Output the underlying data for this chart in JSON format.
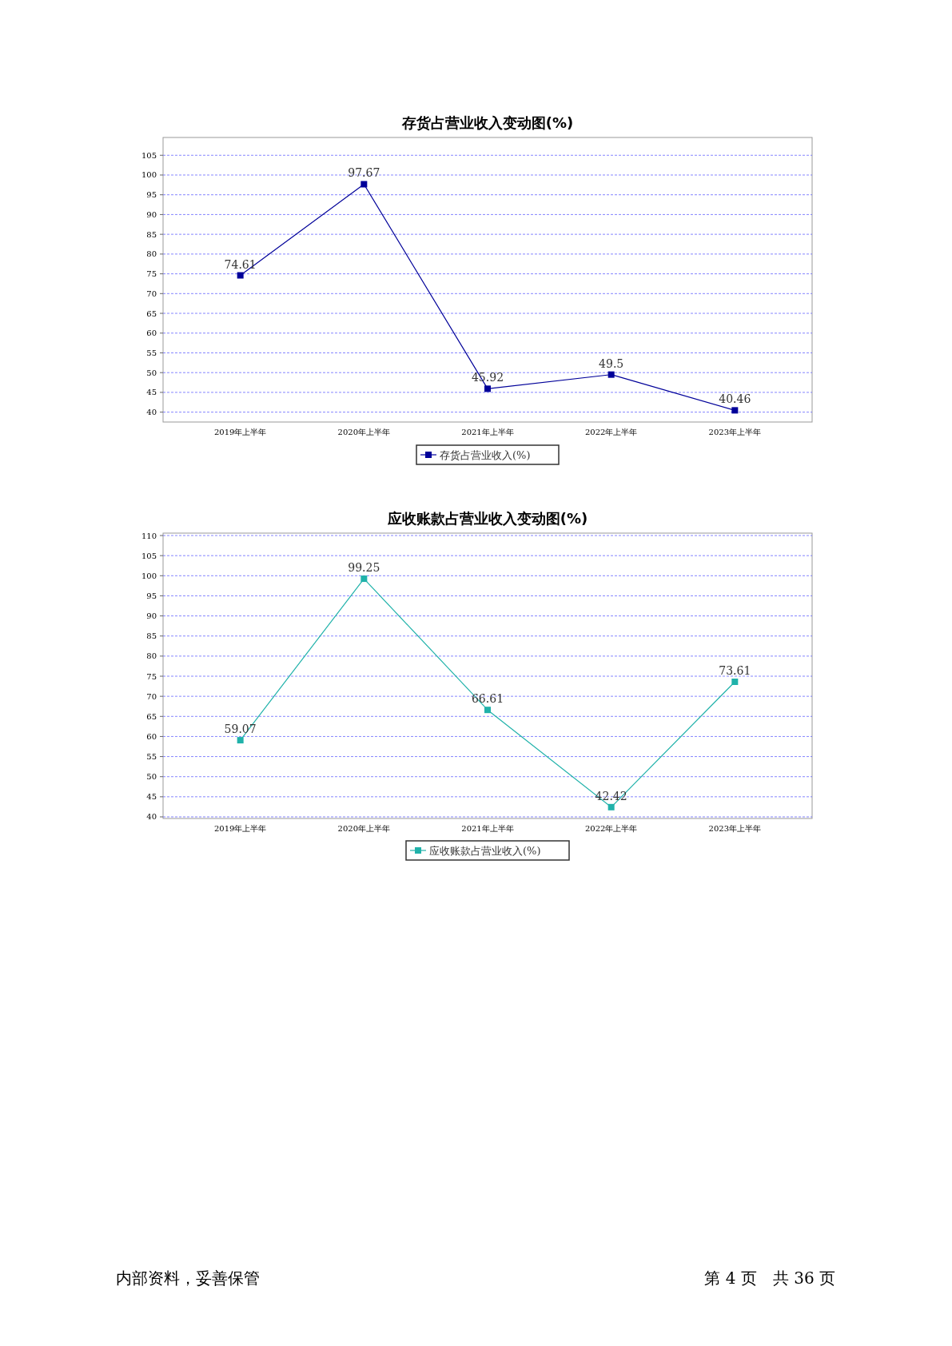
{
  "chart_data": [
    {
      "type": "line",
      "title": "存货占营业收入变动图(%)",
      "categories": [
        "2019年上半年",
        "2020年上半年",
        "2021年上半年",
        "2022年上半年",
        "2023年上半年"
      ],
      "series": [
        {
          "name": "存货占营业收入(%)",
          "color": "#000099",
          "values": [
            74.61,
            97.67,
            45.92,
            49.5,
            40.46
          ]
        }
      ],
      "ylim": [
        37.5,
        109.5
      ],
      "yticks": [
        40,
        45,
        50,
        55,
        60,
        65,
        70,
        75,
        80,
        85,
        90,
        95,
        100,
        105
      ],
      "grid": "y",
      "marker": "square",
      "legend": "bottom",
      "data_labels": true
    },
    {
      "type": "line",
      "title": "应收账款占营业收入变动图(%)",
      "categories": [
        "2019年上半年",
        "2020年上半年",
        "2021年上半年",
        "2022年上半年",
        "2023年上半年"
      ],
      "series": [
        {
          "name": "应收账款占营业收入(%)",
          "color": "#20b2aa",
          "values": [
            59.07,
            99.25,
            66.61,
            42.42,
            73.61
          ]
        }
      ],
      "ylim": [
        39.6,
        110.6
      ],
      "yticks": [
        40,
        45,
        50,
        55,
        60,
        65,
        70,
        75,
        80,
        85,
        90,
        95,
        100,
        105,
        110
      ],
      "grid": "y",
      "marker": "square",
      "legend": "bottom",
      "data_labels": true,
      "annotations": [
        "内部资料，妥善保管",
        "第 4 页　共 36 页"
      ]
    }
  ]
}
